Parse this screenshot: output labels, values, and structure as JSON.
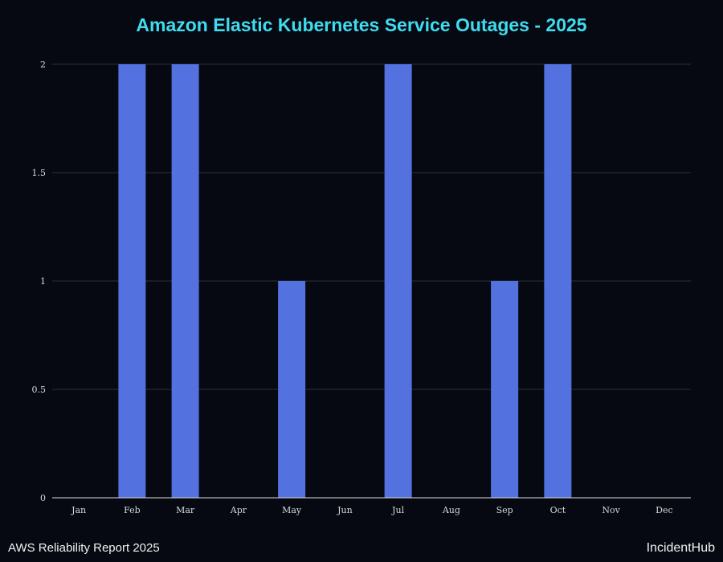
{
  "chart_data": {
    "type": "bar",
    "title": "Amazon Elastic Kubernetes Service Outages - 2025",
    "categories": [
      "Jan",
      "Feb",
      "Mar",
      "Apr",
      "May",
      "Jun",
      "Jul",
      "Aug",
      "Sep",
      "Oct",
      "Nov",
      "Dec"
    ],
    "values": [
      0,
      2,
      2,
      0,
      1,
      0,
      2,
      0,
      1,
      2,
      0,
      0
    ],
    "ylim": [
      0,
      2
    ],
    "yticks": [
      0,
      0.5,
      1,
      1.5,
      2
    ],
    "grid": true,
    "colors": {
      "bar": "#5372e0",
      "title": "#3fdcef",
      "background": "#060912"
    }
  },
  "footer": {
    "left": "AWS Reliability Report 2025",
    "right": "IncidentHub"
  }
}
